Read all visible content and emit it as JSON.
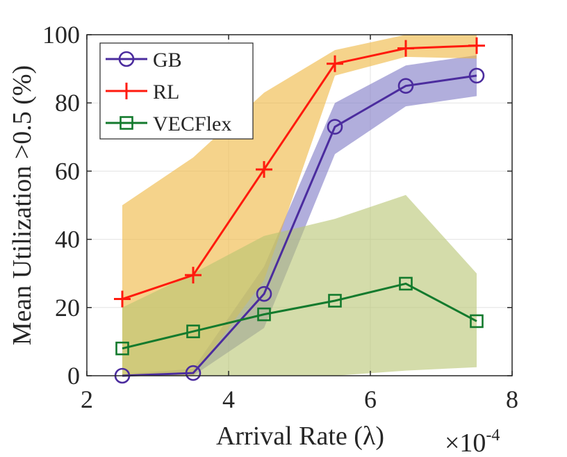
{
  "chart_data": {
    "type": "line",
    "xlabel": "Arrival Rate (λ)",
    "x_multiplier": "×10",
    "x_multiplier_exp": "-4",
    "ylabel": "Mean Utilization >0.5 (%)",
    "xlim": [
      2,
      8
    ],
    "ylim": [
      0,
      100
    ],
    "xticks": [
      2,
      4,
      6,
      8
    ],
    "yticks": [
      0,
      20,
      40,
      60,
      80,
      100
    ],
    "grid": true,
    "legend_position": "top-left",
    "x": [
      2.5,
      3.5,
      4.5,
      5.5,
      6.5,
      7.5
    ],
    "series": [
      {
        "name": "GB",
        "marker": "circle",
        "color": "#4b2c9e",
        "band_color": "#7d78c4",
        "values": [
          0,
          0.8,
          24,
          73,
          85,
          88
        ],
        "lower": [
          0,
          0,
          14,
          65,
          79,
          82
        ],
        "upper": [
          0.5,
          2,
          32,
          80,
          91,
          94
        ]
      },
      {
        "name": "RL",
        "marker": "plus",
        "color": "#ff1a0d",
        "band_color": "#eeb53d",
        "values": [
          22.5,
          29.5,
          60.5,
          91.5,
          96,
          96.8
        ],
        "lower": [
          0,
          0,
          28,
          88,
          93.5,
          93
        ],
        "upper": [
          50,
          64,
          83,
          95.5,
          100,
          100
        ]
      },
      {
        "name": "VECFlex",
        "marker": "square",
        "color": "#137a2d",
        "band_color": "#b7c471",
        "values": [
          8,
          13,
          18,
          22,
          27,
          16
        ],
        "lower": [
          0,
          0,
          0,
          0,
          1.5,
          2.5
        ],
        "upper": [
          20,
          30,
          41,
          46,
          53,
          30
        ]
      }
    ]
  }
}
